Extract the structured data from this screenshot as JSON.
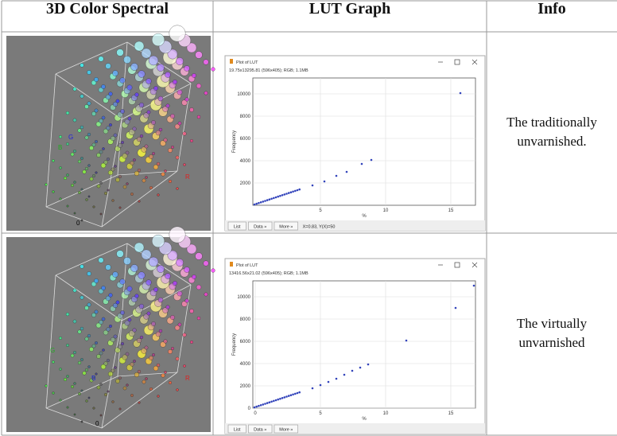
{
  "header": [
    "3D Color Spectral",
    "LUT Graph",
    "Info"
  ],
  "rows": [
    {
      "spectral": {
        "labels": [
          "B",
          "G",
          "R",
          "0"
        ]
      },
      "lut": {
        "window_title": "Plot of LUT",
        "subtitle": "19.75x13295.81 (596x405); RGB; 1.1MB",
        "yticks": [
          "10000",
          "8000",
          "6000",
          "4000",
          "2000"
        ],
        "xticks": [
          "5",
          "10",
          "15"
        ],
        "ylabel": "Frequency",
        "xlabel": "%",
        "buttons": [
          "List",
          "Data »",
          "More »"
        ],
        "status": "X=0.83, Y(X)=50"
      },
      "info": "The traditionally unvarnished."
    },
    {
      "spectral": {
        "labels": [
          "G",
          "B",
          "R",
          "0"
        ]
      },
      "lut": {
        "window_title": "Plot of LUT",
        "subtitle": "13416.56x21.02 (596x405); RGB; 1.1MB",
        "yticks": [
          "10000",
          "8000",
          "6000",
          "4000",
          "2000",
          "0"
        ],
        "xticks": [
          "0",
          "5",
          "10",
          "15"
        ],
        "ylabel": "Frequency",
        "xlabel": "%",
        "buttons": [
          "List",
          "Data »",
          "More »"
        ]
      },
      "info": "The virtually unvarnished"
    }
  ]
}
